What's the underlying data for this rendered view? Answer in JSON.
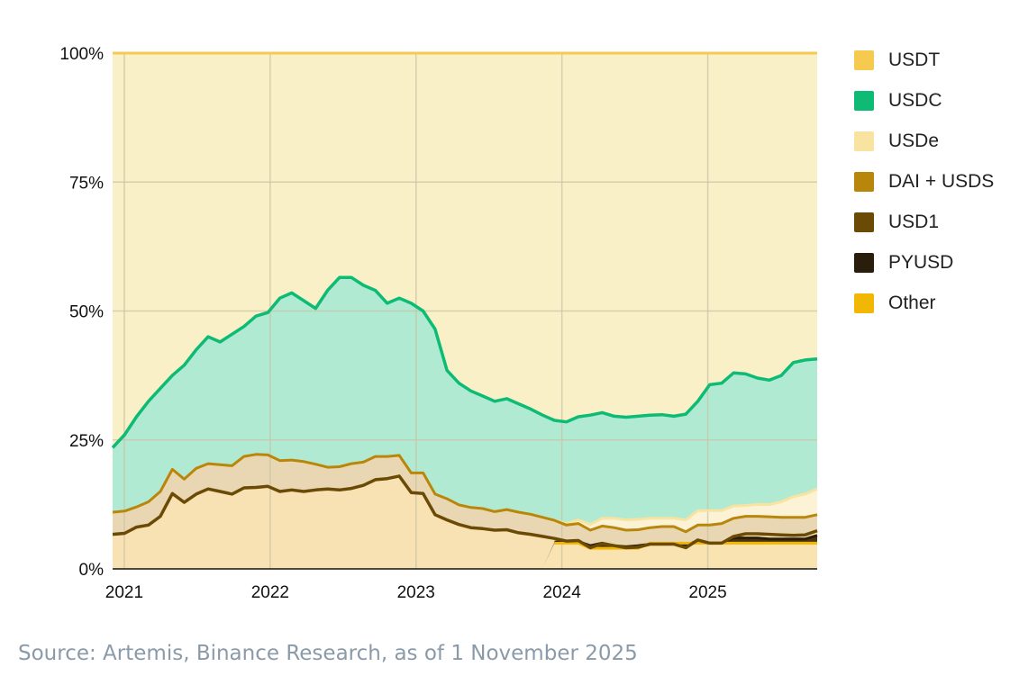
{
  "chart_data": {
    "type": "area",
    "stacked": true,
    "normalized_percent": true,
    "x_start": 2020.92,
    "x_end": 2025.75,
    "x_step_months": 1,
    "xticks": [
      {
        "value": 2021,
        "label": "2021"
      },
      {
        "value": 2022,
        "label": "2022"
      },
      {
        "value": 2023,
        "label": "2023"
      },
      {
        "value": 2024,
        "label": "2024"
      },
      {
        "value": 2025,
        "label": "2025"
      }
    ],
    "yticks": [
      {
        "value": 0,
        "label": "0%"
      },
      {
        "value": 25,
        "label": "25%"
      },
      {
        "value": 50,
        "label": "50%"
      },
      {
        "value": 75,
        "label": "75%"
      },
      {
        "value": 100,
        "label": "100%"
      }
    ],
    "ylim": [
      0,
      100
    ],
    "grid": true,
    "legend_position": "right",
    "cumulative_boundaries": {
      "other": [
        0,
        0,
        0,
        0,
        0,
        0,
        0,
        0,
        0,
        0,
        0,
        0,
        0,
        0,
        0,
        0,
        0,
        0,
        0,
        0,
        0,
        0,
        0,
        0,
        0,
        0,
        0,
        0,
        0,
        0,
        0,
        0,
        0,
        0,
        0,
        0,
        0,
        5,
        5,
        5,
        4,
        4,
        4,
        4,
        4,
        5,
        5,
        5,
        5,
        5,
        5,
        5,
        5,
        5,
        5,
        5,
        5,
        5,
        5,
        5
      ],
      "pyusd": [
        0,
        0,
        0,
        0,
        0,
        0,
        0,
        0,
        0,
        0,
        0,
        0,
        0,
        0,
        0,
        0,
        0,
        0,
        0,
        0,
        0,
        0,
        0,
        0,
        0,
        0,
        0,
        0,
        0,
        0,
        0,
        0,
        0,
        0,
        0,
        0,
        0,
        5.2,
        5.3,
        5.3,
        4.5,
        5.0,
        4.5,
        4.3,
        4.5,
        4.8,
        4.8,
        4.8,
        4.5,
        5.5,
        5,
        5,
        6,
        6,
        6,
        5.8,
        5.8,
        5.8,
        5.8,
        6.5
      ],
      "usd1": [
        6.7,
        6.9,
        8.1,
        8.5,
        10.2,
        14.6,
        12.9,
        14.5,
        15.5,
        15.0,
        14.5,
        15.7,
        15.8,
        16.0,
        15.0,
        15.3,
        15.0,
        15.3,
        15.5,
        15.3,
        15.6,
        16.2,
        17.3,
        17.5,
        18.0,
        14.8,
        14.6,
        10.5,
        9.5,
        8.6,
        8.0,
        7.8,
        7.5,
        7.6,
        7.0,
        6.7,
        6.3,
        5.9,
        5.4,
        5.5,
        4.1,
        4.9,
        4.5,
        4.1,
        4.2,
        4.8,
        4.8,
        4.8,
        4.1,
        5.6,
        5,
        5,
        6.3,
        6.8,
        6.8,
        6.7,
        6.6,
        6.5,
        6.6,
        7.4
      ],
      "dai": [
        11.0,
        11.2,
        12.0,
        13.0,
        15.0,
        19.3,
        17.4,
        19.5,
        20.4,
        20.2,
        20.0,
        21.8,
        22.2,
        22.1,
        21.0,
        21.1,
        20.8,
        20.3,
        19.7,
        19.8,
        20.4,
        20.7,
        21.8,
        21.8,
        22.0,
        18.6,
        18.6,
        14.5,
        13.6,
        12.4,
        11.9,
        11.7,
        11.1,
        11.5,
        11.0,
        10.6,
        10.0,
        9.4,
        8.5,
        8.8,
        7.5,
        8.3,
        8.0,
        7.5,
        7.6,
        8.0,
        8.2,
        8.2,
        7.2,
        8.5,
        8.5,
        8.8,
        9.8,
        10.2,
        10.2,
        10.1,
        10.0,
        10.0,
        10.0,
        10.5
      ],
      "usde": [
        11.0,
        11.2,
        12.0,
        13.0,
        15.0,
        19.3,
        17.4,
        19.5,
        20.4,
        20.2,
        20.0,
        21.8,
        22.2,
        22.1,
        21.0,
        21.1,
        20.8,
        20.3,
        19.7,
        19.8,
        20.4,
        20.7,
        21.8,
        21.8,
        22.0,
        18.6,
        18.6,
        14.5,
        13.6,
        12.4,
        11.9,
        11.7,
        11.1,
        11.5,
        11.0,
        10.6,
        10.0,
        9.4,
        8.8,
        9.5,
        8.6,
        9.8,
        9.8,
        9.5,
        9.6,
        9.8,
        9.8,
        9.8,
        9.5,
        11.3,
        11.3,
        11.3,
        12.2,
        12.3,
        12.5,
        12.5,
        13.0,
        14.0,
        14.5,
        15.5
      ],
      "usdc": [
        23.5,
        26.0,
        29.5,
        32.5,
        35.0,
        37.5,
        39.5,
        42.5,
        45.0,
        44.0,
        45.5,
        47.0,
        49.0,
        49.7,
        52.5,
        53.5,
        52.0,
        50.5,
        54.0,
        56.5,
        56.5,
        55.0,
        54.0,
        51.5,
        52.5,
        51.5,
        50.0,
        46.5,
        38.5,
        36.0,
        34.5,
        33.5,
        32.5,
        33.0,
        32.0,
        31.0,
        29.8,
        28.8,
        28.5,
        29.5,
        29.8,
        30.3,
        29.6,
        29.4,
        29.6,
        29.8,
        29.9,
        29.6,
        30.0,
        32.5,
        35.7,
        36.0,
        38.0,
        37.8,
        37.0,
        36.6,
        37.5,
        40.0,
        40.5,
        40.7
      ]
    },
    "series": [
      {
        "name": "USDT",
        "color": "#f6c94f",
        "fill": "#faf0c8"
      },
      {
        "name": "USDC",
        "color": "#0dbb75",
        "fill": "#b0ead3"
      },
      {
        "name": "USDe",
        "color": "#f8e3a0",
        "fill": "#fcf3d6"
      },
      {
        "name": "DAI + USDS",
        "color": "#b8860b",
        "fill": "#e9d7b3"
      },
      {
        "name": "USD1",
        "color": "#6b4a06",
        "fill": "#f8e2b3"
      },
      {
        "name": "PYUSD",
        "color": "#2b1d0b",
        "fill": "#4a3510"
      },
      {
        "name": "Other",
        "color": "#f2b705",
        "fill": "#f9e4b1"
      }
    ]
  },
  "source": "Source: Artemis, Binance Research, as of 1 November 2025"
}
